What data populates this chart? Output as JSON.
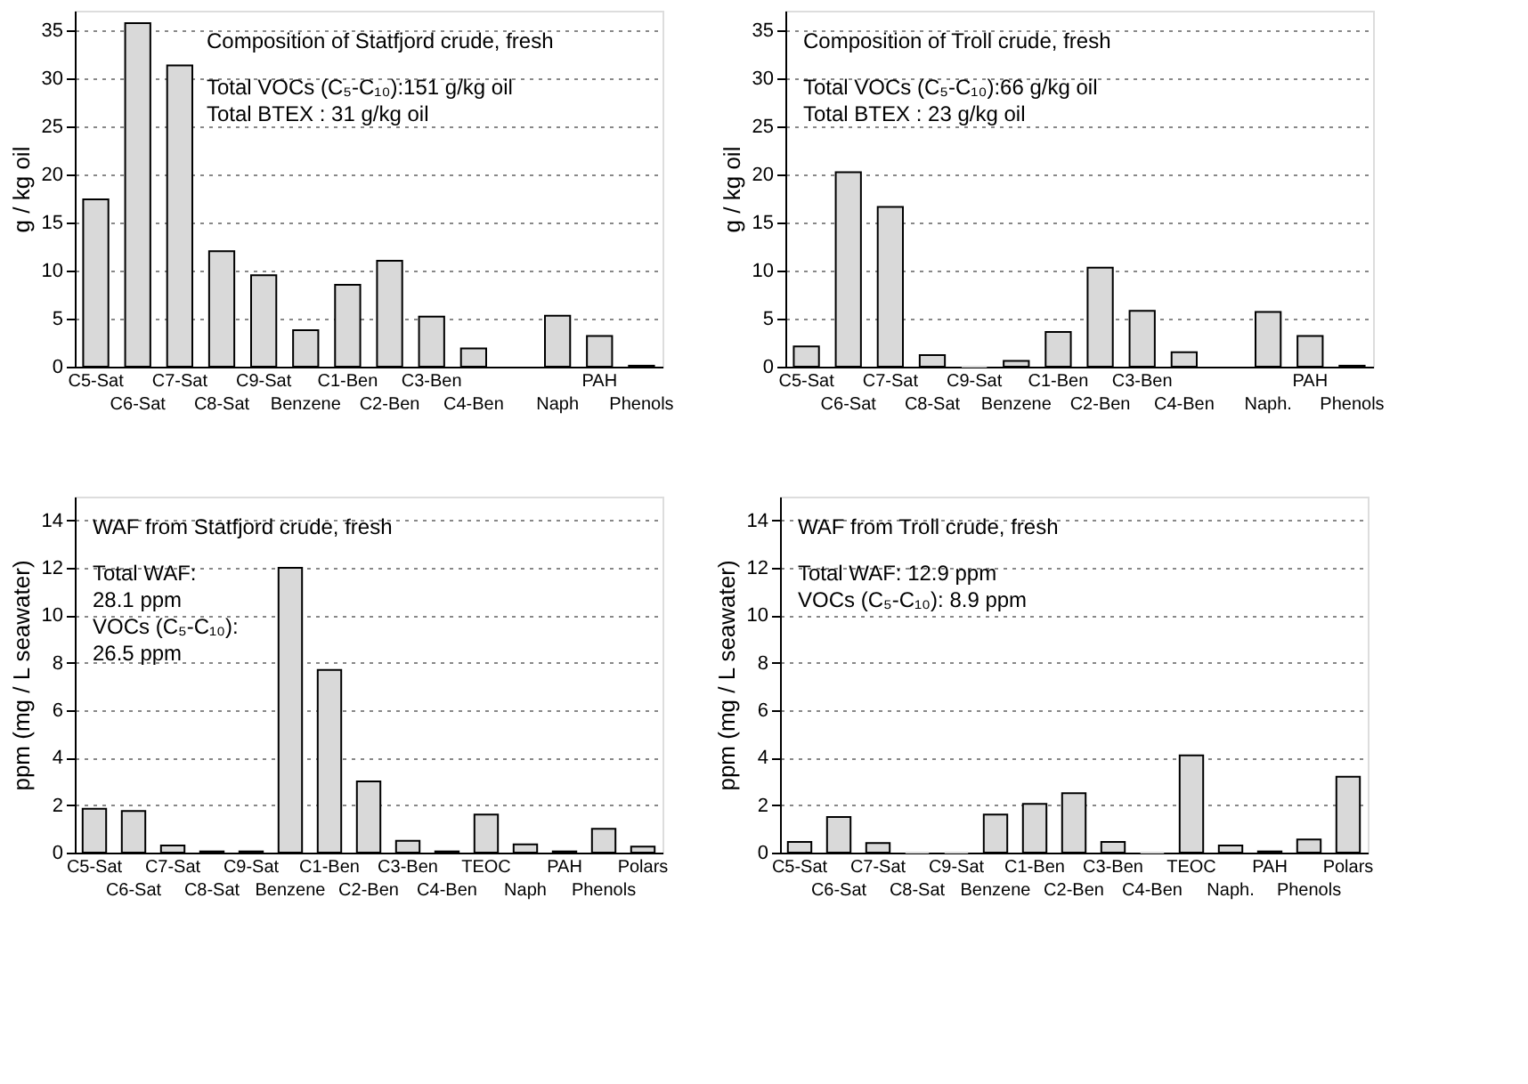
{
  "chart_data": [
    {
      "type": "bar",
      "title": "Composition of Statfjord crude, fresh",
      "ylabel": "g / kg oil",
      "annotations": [
        "Total VOCs (C₅-C₁₀):151 g/kg oil",
        "Total BTEX : 31 g/kg oil"
      ],
      "categories": [
        "C5-Sat",
        "C6-Sat",
        "C7-Sat",
        "C8-Sat",
        "C9-Sat",
        "Benzene",
        "C1-Ben",
        "C2-Ben",
        "C3-Ben",
        "C4-Ben",
        null,
        "Naph",
        "PAH",
        "Phenols"
      ],
      "values": [
        17.4,
        35.7,
        31.3,
        12.0,
        9.5,
        3.8,
        8.5,
        11.0,
        5.2,
        1.9,
        null,
        5.3,
        3.2,
        0.1
      ],
      "color": "#d9d9d9",
      "ylim": [
        0,
        37
      ],
      "yticks": [
        0,
        5,
        10,
        15,
        20,
        25,
        30,
        35
      ],
      "grid": "y"
    },
    {
      "type": "bar",
      "title": "Composition of Troll crude, fresh",
      "ylabel": "g / kg oil",
      "annotations": [
        "Total VOCs (C₅-C₁₀):66 g/kg oil",
        "Total BTEX : 23 g/kg oil"
      ],
      "categories": [
        "C5-Sat",
        "C6-Sat",
        "C7-Sat",
        "C8-Sat",
        "C9-Sat",
        "Benzene",
        "C1-Ben",
        "C2-Ben",
        "C3-Ben",
        "C4-Ben",
        null,
        "Naph.",
        "PAH",
        "Phenols"
      ],
      "values": [
        2.1,
        20.2,
        16.6,
        1.2,
        0,
        0.6,
        3.6,
        10.3,
        5.8,
        1.5,
        null,
        5.7,
        3.2,
        0.1
      ],
      "color": "#d9d9d9",
      "ylim": [
        0,
        37
      ],
      "yticks": [
        0,
        5,
        10,
        15,
        20,
        25,
        30,
        35
      ],
      "grid": "y"
    },
    {
      "type": "bar",
      "title": "WAF from Statfjord crude, fresh",
      "ylabel": "ppm (mg / L seawater)",
      "annotations": [
        "Total WAF:",
        "28.1 ppm",
        "VOCs (C₅-C₁₀):",
        "26.5 ppm"
      ],
      "categories": [
        "C5-Sat",
        "C6-Sat",
        "C7-Sat",
        "C8-Sat",
        "C9-Sat",
        "Benzene",
        "C1-Ben",
        "C2-Ben",
        "C3-Ben",
        "C4-Ben",
        "TEOC",
        "Naph",
        "PAH",
        "Phenols",
        "Polars"
      ],
      "values": [
        1.85,
        1.75,
        0.3,
        0.05,
        0.05,
        12.0,
        7.7,
        3.0,
        0.5,
        0.05,
        1.6,
        0.35,
        0.05,
        1.0,
        0.25
      ],
      "color": "#d9d9d9",
      "ylim": [
        0,
        15
      ],
      "yticks": [
        0,
        2,
        4,
        6,
        8,
        10,
        12,
        14
      ],
      "grid": "y"
    },
    {
      "type": "bar",
      "title": "WAF from Troll crude, fresh",
      "ylabel": "ppm (mg / L seawater)",
      "annotations": [
        "Total WAF: 12.9 ppm",
        "VOCs (C₅-C₁₀): 8.9 ppm"
      ],
      "categories": [
        "C5-Sat",
        "C6-Sat",
        "C7-Sat",
        "C8-Sat",
        "C9-Sat",
        "Benzene",
        "C1-Ben",
        "C2-Ben",
        "C3-Ben",
        "C4-Ben",
        "TEOC",
        "Naph.",
        "PAH",
        "Phenols",
        "Polars"
      ],
      "values": [
        0.45,
        1.5,
        0.4,
        0,
        0,
        1.6,
        2.05,
        2.5,
        0.45,
        0,
        4.1,
        0.3,
        0.05,
        0.55,
        3.2
      ],
      "color": "#d9d9d9",
      "ylim": [
        0,
        15
      ],
      "yticks": [
        0,
        2,
        4,
        6,
        8,
        10,
        12,
        14
      ],
      "grid": "y"
    }
  ]
}
